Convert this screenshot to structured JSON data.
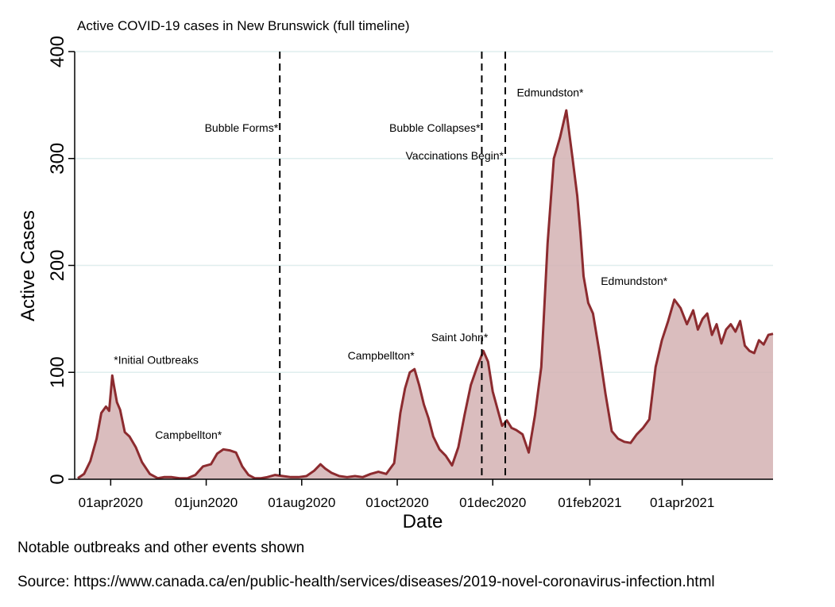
{
  "chart_data": {
    "type": "area",
    "title": "Active COVID-19 cases in New Brunswick (full timeline)",
    "xlabel": "Date",
    "ylabel": "Active Cases",
    "ylim": [
      0,
      400
    ],
    "xlim": [
      "2020-03-09",
      "2021-05-29"
    ],
    "yticks": [
      0,
      100,
      200,
      300,
      400
    ],
    "xticks": [
      {
        "date": "2020-04-01",
        "label": "01apr2020"
      },
      {
        "date": "2020-06-01",
        "label": "01jun2020"
      },
      {
        "date": "2020-08-01",
        "label": "01aug2020"
      },
      {
        "date": "2020-10-01",
        "label": "01oct2020"
      },
      {
        "date": "2020-12-01",
        "label": "01dec2020"
      },
      {
        "date": "2021-02-01",
        "label": "01feb2021"
      },
      {
        "date": "2021-04-01",
        "label": "01apr2021"
      }
    ],
    "grid": true,
    "colors": {
      "line": "#8c2b2f",
      "fill": "#d4b1b3",
      "grid": "#dfeeee",
      "event_line": "#000000"
    },
    "series": [
      {
        "x": [
          "2020-03-11",
          "2020-03-15",
          "2020-03-19",
          "2020-03-23",
          "2020-03-26",
          "2020-03-29",
          "2020-03-31",
          "2020-04-02",
          "2020-04-03",
          "2020-04-05",
          "2020-04-07",
          "2020-04-10",
          "2020-04-13",
          "2020-04-17",
          "2020-04-21",
          "2020-04-26",
          "2020-05-01",
          "2020-05-05",
          "2020-05-10",
          "2020-05-15",
          "2020-05-20",
          "2020-05-25",
          "2020-05-30",
          "2020-06-04",
          "2020-06-08",
          "2020-06-12",
          "2020-06-16",
          "2020-06-20",
          "2020-06-24",
          "2020-06-28",
          "2020-07-02",
          "2020-07-06",
          "2020-07-10",
          "2020-07-15",
          "2020-07-20",
          "2020-07-25",
          "2020-07-30",
          "2020-08-04",
          "2020-08-09",
          "2020-08-13",
          "2020-08-16",
          "2020-08-20",
          "2020-08-25",
          "2020-08-30",
          "2020-09-04",
          "2020-09-09",
          "2020-09-14",
          "2020-09-19",
          "2020-09-24",
          "2020-09-29",
          "2020-10-03",
          "2020-10-06",
          "2020-10-09",
          "2020-10-12",
          "2020-10-15",
          "2020-10-18",
          "2020-10-21",
          "2020-10-24",
          "2020-10-28",
          "2020-11-01",
          "2020-11-05",
          "2020-11-09",
          "2020-11-13",
          "2020-11-17",
          "2020-11-21",
          "2020-11-25",
          "2020-11-28",
          "2020-12-01",
          "2020-12-04",
          "2020-12-07",
          "2020-12-10",
          "2020-12-13",
          "2020-12-16",
          "2020-12-20",
          "2020-12-24",
          "2020-12-28",
          "2021-01-01",
          "2021-01-05",
          "2021-01-09",
          "2021-01-13",
          "2021-01-17",
          "2021-01-21",
          "2021-01-24",
          "2021-01-26",
          "2021-01-28",
          "2021-01-31",
          "2021-02-03",
          "2021-02-07",
          "2021-02-11",
          "2021-02-15",
          "2021-02-19",
          "2021-02-23",
          "2021-02-27",
          "2021-03-03",
          "2021-03-07",
          "2021-03-11",
          "2021-03-15",
          "2021-03-19",
          "2021-03-23",
          "2021-03-27",
          "2021-03-31",
          "2021-04-04",
          "2021-04-08",
          "2021-04-11",
          "2021-04-14",
          "2021-04-17",
          "2021-04-20",
          "2021-04-23",
          "2021-04-26",
          "2021-04-29",
          "2021-05-02",
          "2021-05-05",
          "2021-05-08",
          "2021-05-11",
          "2021-05-14",
          "2021-05-17",
          "2021-05-20",
          "2021-05-23",
          "2021-05-26",
          "2021-05-29"
        ],
        "y": [
          1,
          5,
          17,
          38,
          62,
          68,
          64,
          97,
          88,
          72,
          65,
          44,
          40,
          30,
          16,
          5,
          1,
          2,
          2,
          1,
          1,
          4,
          12,
          14,
          24,
          28,
          27,
          25,
          12,
          4,
          1,
          1,
          2,
          4,
          3,
          2,
          2,
          3,
          8,
          14,
          10,
          6,
          3,
          2,
          3,
          2,
          5,
          7,
          5,
          15,
          62,
          85,
          100,
          103,
          88,
          70,
          57,
          40,
          28,
          22,
          13,
          30,
          60,
          88,
          105,
          120,
          110,
          82,
          66,
          50,
          55,
          48,
          46,
          42,
          25,
          60,
          105,
          220,
          300,
          320,
          345,
          300,
          265,
          230,
          190,
          165,
          155,
          120,
          80,
          45,
          38,
          35,
          34,
          42,
          48,
          56,
          105,
          130,
          148,
          168,
          160,
          145,
          158,
          140,
          150,
          155,
          135,
          145,
          127,
          140,
          145,
          138,
          148,
          125,
          120,
          118,
          130,
          126,
          135,
          136
        ]
      }
    ],
    "events": [
      {
        "date": "2020-07-18",
        "label": "Bubble Forms*"
      },
      {
        "date": "2020-11-24",
        "label": "Bubble Collapses*"
      },
      {
        "date": "2020-12-09",
        "label": "Vaccinations Begin*"
      }
    ],
    "annotations": [
      {
        "label": "*Initial Outbreaks",
        "date": "2020-04-03",
        "y": 108,
        "anchor": "start"
      },
      {
        "label": "Campbellton*",
        "date": "2020-06-11",
        "y": 38,
        "anchor": "end"
      },
      {
        "label": "Campbellton*",
        "date": "2020-10-12",
        "y": 112,
        "anchor": "end"
      },
      {
        "label": "Saint John*",
        "date": "2020-11-28",
        "y": 129,
        "anchor": "end"
      },
      {
        "label": "Edmundston*",
        "date": "2021-01-28",
        "y": 358,
        "anchor": "end"
      },
      {
        "label": "Edmundston*",
        "date": "2021-02-08",
        "y": 182,
        "anchor": "start"
      }
    ]
  },
  "footnotes": {
    "note": "Notable outbreaks and other events shown",
    "source": "Source: https://www.canada.ca/en/public-health/services/diseases/2019-novel-coronavirus-infection.html"
  }
}
